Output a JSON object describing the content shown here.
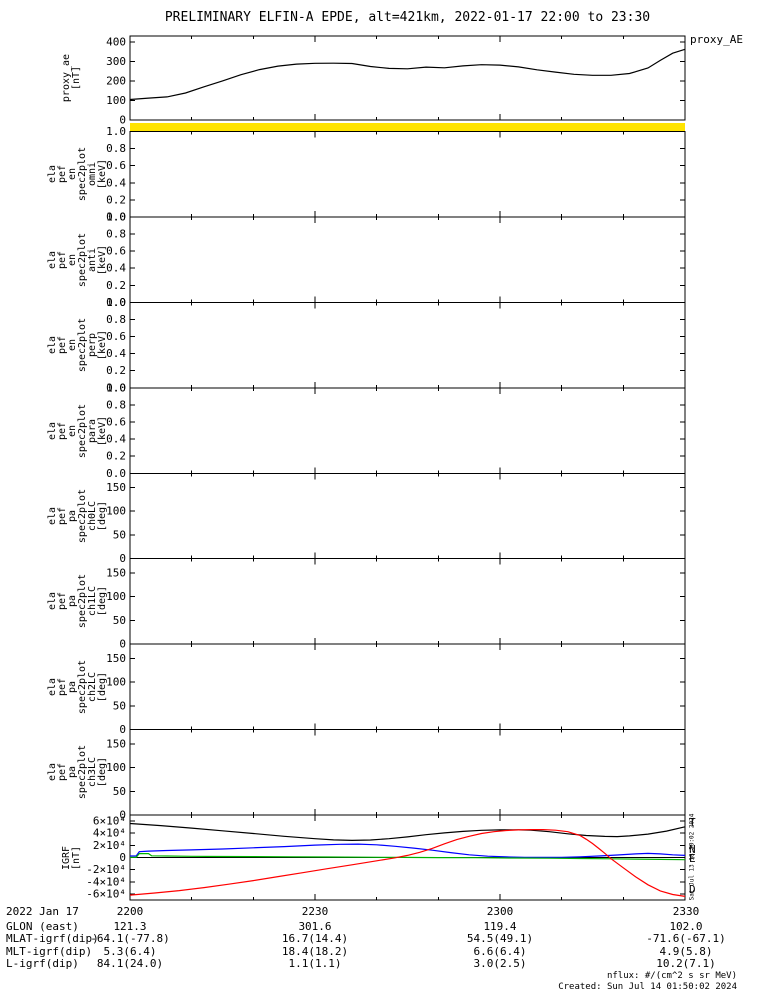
{
  "title": "PRELIMINARY ELFIN-A EPDE, alt=421km, 2022-01-17 22:00 to 23:30",
  "colors": {
    "axis": "#000000",
    "band": "#ffe400",
    "proxy": "#000000",
    "igrf_t": "#000000",
    "igrf_n": "#0000ff",
    "igrf_e": "#00b400",
    "igrf_d": "#ff0000"
  },
  "xaxis": {
    "min": 0,
    "max": 90,
    "minor_step": 10,
    "major": [
      {
        "m": 0,
        "label": "2200"
      },
      {
        "m": 30,
        "label": "2230"
      },
      {
        "m": 60,
        "label": "2300"
      },
      {
        "m": 90,
        "label": "2330"
      }
    ]
  },
  "panels": [
    {
      "id": "proxy_ae",
      "ylabel": [
        "proxy_ae",
        "[nT]"
      ],
      "range": [
        0,
        430
      ],
      "ticks": [
        [
          0,
          "0"
        ],
        [
          100,
          "100"
        ],
        [
          200,
          "200"
        ],
        [
          300,
          "300"
        ],
        [
          400,
          "400"
        ]
      ]
    },
    {
      "id": "en_omni",
      "ylabel": [
        "ela",
        "pef",
        "en",
        "spec2plot",
        "omni",
        "[keV]"
      ],
      "range": [
        0,
        1
      ],
      "ticks": [
        [
          0,
          "0.0"
        ],
        [
          0.2,
          "0.2"
        ],
        [
          0.4,
          "0.4"
        ],
        [
          0.6,
          "0.6"
        ],
        [
          0.8,
          "0.8"
        ],
        [
          1,
          "1.0"
        ]
      ]
    },
    {
      "id": "en_anti",
      "ylabel": [
        "ela",
        "pef",
        "en",
        "spec2plot",
        "anti",
        "[keV]"
      ],
      "range": [
        0,
        1
      ],
      "ticks": [
        [
          0,
          "0.0"
        ],
        [
          0.2,
          "0.2"
        ],
        [
          0.4,
          "0.4"
        ],
        [
          0.6,
          "0.6"
        ],
        [
          0.8,
          "0.8"
        ],
        [
          1,
          "1.0"
        ]
      ]
    },
    {
      "id": "en_perp",
      "ylabel": [
        "ela",
        "pef",
        "en",
        "spec2plot",
        "perp",
        "[keV]"
      ],
      "range": [
        0,
        1
      ],
      "ticks": [
        [
          0,
          "0.0"
        ],
        [
          0.2,
          "0.2"
        ],
        [
          0.4,
          "0.4"
        ],
        [
          0.6,
          "0.6"
        ],
        [
          0.8,
          "0.8"
        ],
        [
          1,
          "1.0"
        ]
      ]
    },
    {
      "id": "en_para",
      "ylabel": [
        "ela",
        "pef",
        "en",
        "spec2plot",
        "para",
        "[keV]"
      ],
      "range": [
        0,
        1
      ],
      "ticks": [
        [
          0,
          "0.0"
        ],
        [
          0.2,
          "0.2"
        ],
        [
          0.4,
          "0.4"
        ],
        [
          0.6,
          "0.6"
        ],
        [
          0.8,
          "0.8"
        ],
        [
          1,
          "1.0"
        ]
      ]
    },
    {
      "id": "pa_ch0lc",
      "ylabel": [
        "ela",
        "pef",
        "pa",
        "spec2plot",
        "ch0LC",
        "[deg]"
      ],
      "range": [
        0,
        180
      ],
      "ticks": [
        [
          0,
          "0"
        ],
        [
          50,
          "50"
        ],
        [
          100,
          "100"
        ],
        [
          150,
          "150"
        ]
      ]
    },
    {
      "id": "pa_ch1lc",
      "ylabel": [
        "ela",
        "pef",
        "pa",
        "spec2plot",
        "ch1LC",
        "[deg]"
      ],
      "range": [
        0,
        180
      ],
      "ticks": [
        [
          0,
          "0"
        ],
        [
          50,
          "50"
        ],
        [
          100,
          "100"
        ],
        [
          150,
          "150"
        ]
      ]
    },
    {
      "id": "pa_ch2lc",
      "ylabel": [
        "ela",
        "pef",
        "pa",
        "spec2plot",
        "ch2LC",
        "[deg]"
      ],
      "range": [
        0,
        180
      ],
      "ticks": [
        [
          0,
          "0"
        ],
        [
          50,
          "50"
        ],
        [
          100,
          "100"
        ],
        [
          150,
          "150"
        ]
      ]
    },
    {
      "id": "pa_ch3lc",
      "ylabel": [
        "ela",
        "pef",
        "pa",
        "spec2plot",
        "ch3LC",
        "[deg]"
      ],
      "range": [
        0,
        180
      ],
      "ticks": [
        [
          0,
          "0"
        ],
        [
          50,
          "50"
        ],
        [
          100,
          "100"
        ],
        [
          150,
          "150"
        ]
      ]
    },
    {
      "id": "igrf",
      "ylabel": [
        "IGRF",
        "[nT]"
      ],
      "range": [
        -70000,
        70000
      ],
      "ticks": [
        [
          60000,
          "6×10⁴"
        ],
        [
          40000,
          "4×10⁴"
        ],
        [
          20000,
          "2×10⁴"
        ],
        [
          0,
          "0"
        ],
        [
          -20000,
          "-2×10⁴"
        ],
        [
          -40000,
          "-4×10⁴"
        ],
        [
          -60000,
          "-6×10⁴"
        ]
      ]
    }
  ],
  "igrf_labels": [
    {
      "name": "T",
      "color": "#000000"
    },
    {
      "name": "N",
      "color": "#0000ff"
    },
    {
      "name": "E",
      "color": "#00b400"
    },
    {
      "name": "D",
      "color": "#ff0000"
    }
  ],
  "chart_data": [
    {
      "type": "line",
      "panel": "proxy_ae",
      "title": "proxy_AE",
      "ylabel": "proxy_ae [nT]",
      "ylim": [
        0,
        430
      ],
      "x_units": "minutes after 2022-01-17 22:00 UT",
      "x_ticks": [
        "2200",
        "2230",
        "2300",
        "2330"
      ],
      "series": [
        {
          "name": "proxy_AE",
          "color": "#000000",
          "points": [
            [
              0,
              105
            ],
            [
              3,
              112
            ],
            [
              6,
              118
            ],
            [
              9,
              138
            ],
            [
              12,
              170
            ],
            [
              15,
              200
            ],
            [
              18,
              232
            ],
            [
              21,
              258
            ],
            [
              24,
              276
            ],
            [
              27,
              286
            ],
            [
              30,
              290
            ],
            [
              33,
              291
            ],
            [
              36,
              289
            ],
            [
              39,
              274
            ],
            [
              42,
              264
            ],
            [
              45,
              262
            ],
            [
              48,
              271
            ],
            [
              51,
              267
            ],
            [
              54,
              277
            ],
            [
              57,
              283
            ],
            [
              60,
              281
            ],
            [
              63,
              272
            ],
            [
              66,
              257
            ],
            [
              69,
              245
            ],
            [
              72,
              234
            ],
            [
              75,
              229
            ],
            [
              78,
              229
            ],
            [
              81,
              238
            ],
            [
              84,
              266
            ],
            [
              86,
              305
            ],
            [
              88,
              342
            ],
            [
              90,
              362
            ]
          ]
        }
      ]
    },
    {
      "type": "heatmap",
      "panel": "en_omni",
      "note": "empty spectrogram; saturated yellow band along top edge",
      "band_color": "#ffe400"
    },
    {
      "type": "heatmap",
      "panel": "en_anti",
      "note": "empty spectrogram"
    },
    {
      "type": "heatmap",
      "panel": "en_perp",
      "note": "empty spectrogram"
    },
    {
      "type": "heatmap",
      "panel": "en_para",
      "note": "empty spectrogram"
    },
    {
      "type": "heatmap",
      "panel": "pa_ch0lc",
      "note": "empty spectrogram"
    },
    {
      "type": "heatmap",
      "panel": "pa_ch1lc",
      "note": "empty spectrogram"
    },
    {
      "type": "heatmap",
      "panel": "pa_ch2lc",
      "note": "empty spectrogram"
    },
    {
      "type": "heatmap",
      "panel": "pa_ch3lc",
      "note": "empty spectrogram"
    },
    {
      "type": "line",
      "panel": "igrf",
      "title": "IGRF [nT]",
      "ylim": [
        -70000,
        70000
      ],
      "x_units": "minutes after 2022-01-17 22:00 UT",
      "series": [
        {
          "name": "T",
          "color": "#000000",
          "points": [
            [
              0,
              56000
            ],
            [
              5,
              52500
            ],
            [
              10,
              48500
            ],
            [
              15,
              44000
            ],
            [
              20,
              39500
            ],
            [
              25,
              35000
            ],
            [
              30,
              31000
            ],
            [
              33,
              29000
            ],
            [
              36,
              28200
            ],
            [
              39,
              28800
            ],
            [
              42,
              31000
            ],
            [
              45,
              34000
            ],
            [
              48,
              37500
            ],
            [
              51,
              40500
            ],
            [
              54,
              43000
            ],
            [
              57,
              44800
            ],
            [
              60,
              45500
            ],
            [
              63,
              45500
            ],
            [
              65,
              45000
            ],
            [
              68,
              42500
            ],
            [
              71,
              39000
            ],
            [
              74,
              36200
            ],
            [
              77,
              34800
            ],
            [
              79,
              34500
            ],
            [
              81,
              35500
            ],
            [
              84,
              38500
            ],
            [
              87,
              43500
            ],
            [
              90,
              50500
            ]
          ]
        },
        {
          "name": "N",
          "color": "#0000ff",
          "points": [
            [
              0,
              2500
            ],
            [
              1,
              2500
            ],
            [
              1.5,
              9500
            ],
            [
              3,
              10500
            ],
            [
              6,
              11500
            ],
            [
              10,
              12500
            ],
            [
              15,
              14000
            ],
            [
              20,
              16000
            ],
            [
              25,
              18000
            ],
            [
              30,
              20500
            ],
            [
              34,
              21800
            ],
            [
              37,
              22000
            ],
            [
              40,
              21000
            ],
            [
              43,
              18500
            ],
            [
              46,
              15500
            ],
            [
              49,
              12000
            ],
            [
              52,
              8000
            ],
            [
              55,
              4500
            ],
            [
              58,
              2200
            ],
            [
              61,
              1000
            ],
            [
              64,
              400
            ],
            [
              67,
              200
            ],
            [
              70,
              400
            ],
            [
              73,
              1200
            ],
            [
              76,
              2500
            ],
            [
              79,
              4200
            ],
            [
              82,
              6000
            ],
            [
              84,
              6800
            ],
            [
              86,
              6000
            ],
            [
              88,
              4500
            ],
            [
              90,
              3500
            ]
          ]
        },
        {
          "name": "E",
          "color": "#00b400",
          "points": [
            [
              0,
              400
            ],
            [
              1,
              400
            ],
            [
              1.5,
              6500
            ],
            [
              3,
              6500
            ],
            [
              3.5,
              2800
            ],
            [
              6,
              2400
            ],
            [
              10,
              2000
            ],
            [
              15,
              1700
            ],
            [
              20,
              1400
            ],
            [
              26,
              1100
            ],
            [
              32,
              800
            ],
            [
              38,
              500
            ],
            [
              44,
              200
            ],
            [
              50,
              -100
            ],
            [
              56,
              -400
            ],
            [
              62,
              -800
            ],
            [
              68,
              -1200
            ],
            [
              73,
              -1600
            ],
            [
              78,
              -2100
            ],
            [
              82,
              -2600
            ],
            [
              86,
              -3100
            ],
            [
              90,
              -3700
            ]
          ]
        },
        {
          "name": "D",
          "color": "#ff0000",
          "points": [
            [
              0,
              -62000
            ],
            [
              4,
              -58500
            ],
            [
              8,
              -54500
            ],
            [
              12,
              -49500
            ],
            [
              16,
              -44000
            ],
            [
              20,
              -38000
            ],
            [
              24,
              -31500
            ],
            [
              28,
              -25000
            ],
            [
              32,
              -18500
            ],
            [
              36,
              -12000
            ],
            [
              40,
              -5500
            ],
            [
              43,
              -500
            ],
            [
              45,
              3500
            ],
            [
              47,
              8500
            ],
            [
              49,
              15000
            ],
            [
              51,
              22500
            ],
            [
              53,
              29500
            ],
            [
              55,
              35000
            ],
            [
              57,
              39500
            ],
            [
              59,
              42500
            ],
            [
              61,
              44500
            ],
            [
              63,
              45500
            ],
            [
              65,
              46000
            ],
            [
              67,
              46000
            ],
            [
              69,
              45000
            ],
            [
              71,
              42500
            ],
            [
              73,
              36000
            ],
            [
              74,
              30000
            ],
            [
              75,
              23000
            ],
            [
              76,
              15000
            ],
            [
              77,
              7000
            ],
            [
              78,
              -2000
            ],
            [
              80,
              -17000
            ],
            [
              82,
              -32000
            ],
            [
              84,
              -45000
            ],
            [
              86,
              -55000
            ],
            [
              88,
              -61000
            ],
            [
              90,
              -64000
            ]
          ]
        }
      ]
    }
  ],
  "texts": {
    "proxy_right_label": "proxy_AE",
    "side_timestamp": "Sat Jul 13 18:50:02 2024"
  },
  "footer": {
    "date": "2022 Jan 17",
    "times": [
      "2200",
      "2230",
      "2300",
      "2330"
    ],
    "rows": [
      {
        "label": "GLON (east)",
        "values": [
          "121.3",
          "301.6",
          "119.4",
          "102.0"
        ]
      },
      {
        "label": "MLAT-igrf(dip)",
        "values": [
          "-64.1(-77.8)",
          "16.7(14.4)",
          "54.5(49.1)",
          "-71.6(-67.1)"
        ]
      },
      {
        "label": "MLT-igrf(dip)",
        "values": [
          "5.3(6.4)",
          "18.4(18.2)",
          "6.6(6.4)",
          "4.9(5.8)"
        ]
      },
      {
        "label": "L-igrf(dip)",
        "values": [
          "84.1(24.0)",
          "1.1(1.1)",
          "3.0(2.5)",
          "10.2(7.1)"
        ]
      }
    ]
  },
  "corner": {
    "nflux": "nflux: #/(cm^2 s sr MeV)",
    "created": "Created: Sun Jul 14 01:50:02 2024"
  }
}
